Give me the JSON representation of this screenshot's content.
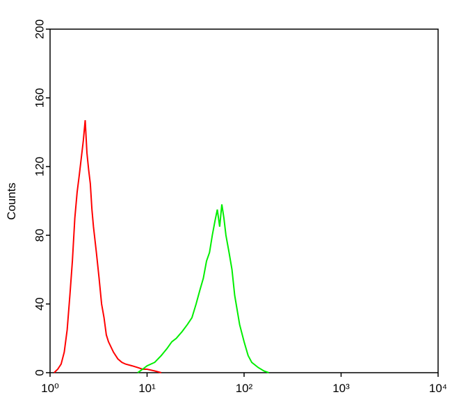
{
  "chart_data": {
    "type": "line",
    "y_label": "Counts",
    "xscale": "log",
    "xlim": [
      1,
      10000
    ],
    "xticks": [
      {
        "value": 1,
        "label": "10⁰"
      },
      {
        "value": 10,
        "label": "10¹"
      },
      {
        "value": 100,
        "label": "10²"
      },
      {
        "value": 1000,
        "label": "10³"
      },
      {
        "value": 10000,
        "label": "10⁴"
      }
    ],
    "ylim": [
      0,
      200
    ],
    "yticks": [
      0,
      40,
      80,
      120,
      160,
      200
    ],
    "series": [
      {
        "color": "#ff0000",
        "x": [
          1.1,
          1.2,
          1.3,
          1.4,
          1.5,
          1.6,
          1.7,
          1.8,
          1.9,
          2.0,
          2.1,
          2.2,
          2.3,
          2.4,
          2.5,
          2.6,
          2.7,
          2.8,
          3.0,
          3.2,
          3.4,
          3.6,
          3.8,
          4.0,
          4.5,
          5,
          5.5,
          6,
          7,
          8,
          9,
          10,
          12,
          14
        ],
        "values": [
          0,
          2,
          5,
          12,
          25,
          45,
          65,
          90,
          105,
          115,
          125,
          135,
          147,
          128,
          118,
          110,
          95,
          85,
          70,
          55,
          40,
          32,
          22,
          18,
          12,
          8,
          6,
          5,
          4,
          3,
          2,
          2,
          1,
          0
        ]
      },
      {
        "color": "#00ee00",
        "x": [
          8,
          9,
          10,
          12,
          14,
          16,
          18,
          20,
          23,
          26,
          29,
          32,
          35,
          38,
          41,
          44,
          47,
          50,
          53,
          56,
          59,
          62,
          65,
          70,
          75,
          80,
          90,
          100,
          110,
          120,
          140,
          160,
          180
        ],
        "values": [
          0,
          2,
          4,
          6,
          10,
          14,
          18,
          20,
          24,
          28,
          32,
          40,
          48,
          55,
          65,
          70,
          80,
          88,
          95,
          85,
          98,
          90,
          80,
          70,
          60,
          45,
          28,
          18,
          10,
          6,
          3,
          1,
          0
        ]
      }
    ]
  }
}
